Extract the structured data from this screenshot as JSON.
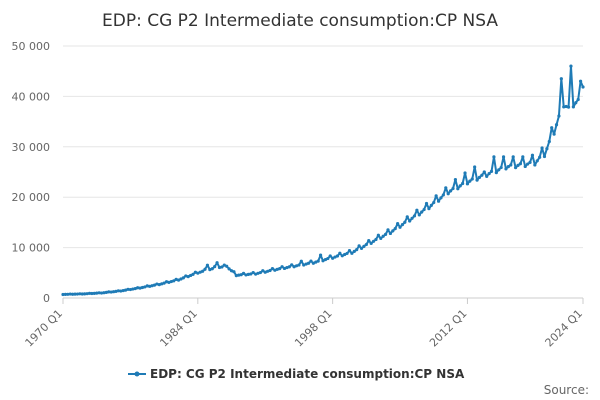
{
  "chart_data": {
    "type": "line",
    "title": "EDP: CG P2 Intermediate consumption:CP NSA",
    "xlabel": "",
    "ylabel": "",
    "ylim": [
      0,
      50000
    ],
    "yticks": [
      0,
      10000,
      20000,
      30000,
      40000,
      50000
    ],
    "ytick_labels": [
      "0",
      "10 000",
      "20 000",
      "30 000",
      "40 000",
      "50 000"
    ],
    "xticks": [
      "1970 Q1",
      "1984 Q1",
      "1998 Q1",
      "2012 Q1",
      "2024 Q1"
    ],
    "x_range": [
      "1970 Q1",
      "2024 Q1"
    ],
    "grid": true,
    "legend_position": "bottom",
    "series": [
      {
        "name": "EDP: CG P2 Intermediate consumption:CP NSA",
        "color": "#1f7bb6",
        "anchors": [
          [
            "1970 Q1",
            700
          ],
          [
            "1972 Q1",
            800
          ],
          [
            "1974 Q1",
            1000
          ],
          [
            "1976 Q1",
            1400
          ],
          [
            "1978 Q1",
            2000
          ],
          [
            "1980 Q1",
            2700
          ],
          [
            "1982 Q1",
            3600
          ],
          [
            "1984 Q1",
            5000
          ],
          [
            "1986 Q1",
            6000
          ],
          [
            "1987 Q1",
            6200
          ],
          [
            "1988 Q1",
            4500
          ],
          [
            "1990 Q1",
            4800
          ],
          [
            "1992 Q1",
            5600
          ],
          [
            "1994 Q1",
            6300
          ],
          [
            "1996 Q1",
            7000
          ],
          [
            "1998 Q1",
            8000
          ],
          [
            "2000 Q1",
            9000
          ],
          [
            "2002 Q1",
            11000
          ],
          [
            "2004 Q1",
            13000
          ],
          [
            "2006 Q1",
            15500
          ],
          [
            "2008 Q1",
            18000
          ],
          [
            "2010 Q1",
            21000
          ],
          [
            "2012 Q1",
            23000
          ],
          [
            "2014 Q1",
            24500
          ],
          [
            "2016 Q1",
            26000
          ],
          [
            "2018 Q1",
            26500
          ],
          [
            "2019 Q1",
            26800
          ],
          [
            "2020 Q1",
            28500
          ],
          [
            "2021 Q1",
            33000
          ],
          [
            "2022 Q1",
            38500
          ],
          [
            "2022 Q3",
            37500
          ],
          [
            "2023 Q1",
            38500
          ],
          [
            "2023 Q3",
            39000
          ],
          [
            "2024 Q1",
            42500
          ]
        ],
        "peaks": [
          [
            "1985 Q1",
            6500
          ],
          [
            "1986 Q1",
            7000
          ],
          [
            "1987 Q1",
            6300
          ],
          [
            "1994 Q4",
            7300
          ],
          [
            "1996 Q4",
            8500
          ],
          [
            "2010 Q4",
            23500
          ],
          [
            "2011 Q4",
            24800
          ],
          [
            "2012 Q4",
            26000
          ],
          [
            "2013 Q4",
            25000
          ],
          [
            "2014 Q4",
            28000
          ],
          [
            "2015 Q4",
            28000
          ],
          [
            "2016 Q4",
            28000
          ],
          [
            "2017 Q4",
            28000
          ],
          [
            "2021 Q4",
            43500
          ],
          [
            "2022 Q4",
            46000
          ],
          [
            "2023 Q4",
            43000
          ]
        ]
      }
    ]
  },
  "source_label": "Source:"
}
